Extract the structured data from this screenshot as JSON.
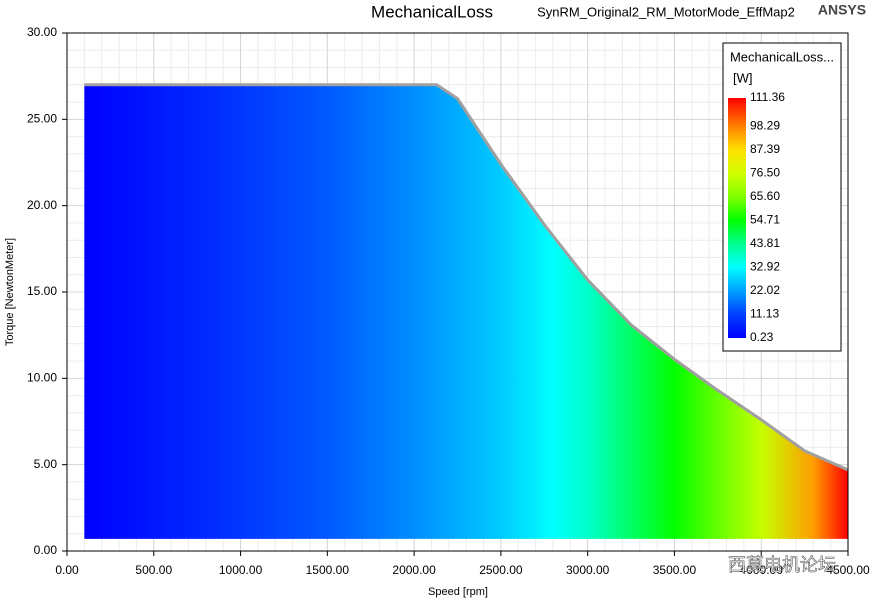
{
  "chart_data": {
    "type": "contour",
    "title": "MechanicalLoss",
    "subtitle": "SynRM_Original2_RM_MotorMode_EffMap2",
    "brand": "ANSYS",
    "xlabel": "Speed [rpm]",
    "ylabel": "Torque [NewtonMeter]",
    "xlim": [
      0,
      4500
    ],
    "ylim": [
      0,
      30
    ],
    "xticks": [
      {
        "value": 0,
        "label": "0.00"
      },
      {
        "value": 500,
        "label": "500.00"
      },
      {
        "value": 1000,
        "label": "1000.00"
      },
      {
        "value": 1500,
        "label": "1500.00"
      },
      {
        "value": 2000,
        "label": "2000.00"
      },
      {
        "value": 2500,
        "label": "2500.00"
      },
      {
        "value": 3000,
        "label": "3000.00"
      },
      {
        "value": 3500,
        "label": "3500.00"
      },
      {
        "value": 4000,
        "label": "4000.00"
      },
      {
        "value": 4500,
        "label": "4500.00"
      }
    ],
    "yticks": [
      {
        "value": 0,
        "label": "0.00"
      },
      {
        "value": 5,
        "label": "5.00"
      },
      {
        "value": 10,
        "label": "10.00"
      },
      {
        "value": 15,
        "label": "15.00"
      },
      {
        "value": 20,
        "label": "20.00"
      },
      {
        "value": 25,
        "label": "25.00"
      },
      {
        "value": 30,
        "label": "30.00"
      }
    ],
    "grid": true,
    "minor_divisions": 5,
    "envelope": {
      "x": [
        100,
        2130,
        2250,
        2500,
        2750,
        3000,
        3250,
        3500,
        3750,
        4000,
        4250,
        4500
      ],
      "y": [
        27.0,
        27.0,
        26.2,
        22.4,
        18.9,
        15.7,
        13.1,
        11.1,
        9.3,
        7.6,
        5.8,
        4.7
      ],
      "lower": 0.7,
      "color": "#a0a0a0"
    },
    "loss": {
      "x": [
        100,
        880,
        1500,
        2000,
        2500,
        2800,
        3000,
        3500,
        4000,
        4300,
        4500
      ],
      "values": [
        0.23,
        8,
        14,
        20,
        27,
        33,
        38,
        55,
        75,
        95,
        111.36
      ]
    },
    "colorbar": {
      "title": "MechanicalLoss...",
      "unit": "[W]",
      "ticks": [
        0.23,
        11.13,
        22.02,
        32.92,
        43.81,
        54.71,
        {
          "value": 65.6,
          "label": "65.60"
        },
        {
          "value": 76.5,
          "label": "76.50"
        },
        87.39,
        98.29,
        111.36
      ],
      "colors": [
        "#0000ff",
        "#0040ff",
        "#00a0ff",
        "#00ffff",
        "#00ff90",
        "#00ff00",
        "#80ff00",
        "#d0ff00",
        "#ffe000",
        "#ff8000",
        "#ff0000"
      ]
    },
    "watermark": "西莫电机论坛"
  }
}
